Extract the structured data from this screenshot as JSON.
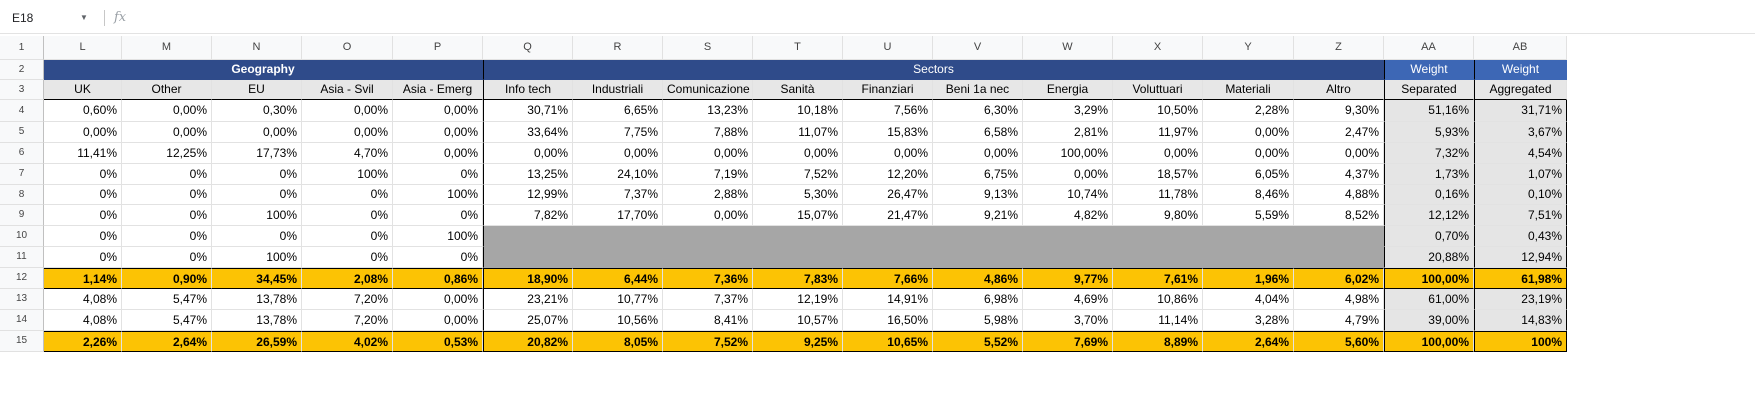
{
  "formula_bar": {
    "name_box": "E18",
    "fx_label": "fx"
  },
  "columns": [
    "L",
    "M",
    "N",
    "O",
    "P",
    "Q",
    "R",
    "S",
    "T",
    "U",
    "V",
    "W",
    "X",
    "Y",
    "Z",
    "AA",
    "AB"
  ],
  "rows": [
    "1",
    "2",
    "3",
    "4",
    "5",
    "6",
    "7",
    "8",
    "9",
    "10",
    "11",
    "12",
    "13",
    "14",
    "15"
  ],
  "groups": {
    "geography": "Geography",
    "sectors": "Sectors",
    "weight_sep": "Weight",
    "weight_agg": "Weight"
  },
  "headers": [
    "UK",
    "Other",
    "EU",
    "Asia - Svil",
    "Asia - Emerg",
    "Info tech",
    "Industriali",
    "Comunicazione",
    "Sanità",
    "Finanziari",
    "Beni 1a nec",
    "Energia",
    "Voluttuari",
    "Materiali",
    "Altro",
    "Separated",
    "Aggregated"
  ],
  "data_rows": [
    [
      "0,60%",
      "0,00%",
      "0,30%",
      "0,00%",
      "0,00%",
      "30,71%",
      "6,65%",
      "13,23%",
      "10,18%",
      "7,56%",
      "6,30%",
      "3,29%",
      "10,50%",
      "2,28%",
      "9,30%",
      "51,16%",
      "31,71%"
    ],
    [
      "0,00%",
      "0,00%",
      "0,00%",
      "0,00%",
      "0,00%",
      "33,64%",
      "7,75%",
      "7,88%",
      "11,07%",
      "15,83%",
      "6,58%",
      "2,81%",
      "11,97%",
      "0,00%",
      "2,47%",
      "5,93%",
      "3,67%"
    ],
    [
      "11,41%",
      "12,25%",
      "17,73%",
      "4,70%",
      "0,00%",
      "0,00%",
      "0,00%",
      "0,00%",
      "0,00%",
      "0,00%",
      "0,00%",
      "100,00%",
      "0,00%",
      "0,00%",
      "0,00%",
      "7,32%",
      "4,54%"
    ],
    [
      "0%",
      "0%",
      "0%",
      "100%",
      "0%",
      "13,25%",
      "24,10%",
      "7,19%",
      "7,52%",
      "12,20%",
      "6,75%",
      "0,00%",
      "18,57%",
      "6,05%",
      "4,37%",
      "1,73%",
      "1,07%"
    ],
    [
      "0%",
      "0%",
      "0%",
      "0%",
      "100%",
      "12,99%",
      "7,37%",
      "2,88%",
      "5,30%",
      "26,47%",
      "9,13%",
      "10,74%",
      "11,78%",
      "8,46%",
      "4,88%",
      "0,16%",
      "0,10%"
    ],
    [
      "0%",
      "0%",
      "100%",
      "0%",
      "0%",
      "7,82%",
      "17,70%",
      "0,00%",
      "15,07%",
      "21,47%",
      "9,21%",
      "4,82%",
      "9,80%",
      "5,59%",
      "8,52%",
      "12,12%",
      "7,51%"
    ],
    [
      "0%",
      "0%",
      "0%",
      "0%",
      "100%",
      "",
      "",
      "",
      "",
      "",
      "",
      "",
      "",
      "",
      "",
      "0,70%",
      "0,43%"
    ],
    [
      "0%",
      "0%",
      "100%",
      "0%",
      "0%",
      "",
      "",
      "",
      "",
      "",
      "",
      "",
      "",
      "",
      "",
      "20,88%",
      "12,94%"
    ],
    [
      "1,14%",
      "0,90%",
      "34,45%",
      "2,08%",
      "0,86%",
      "18,90%",
      "6,44%",
      "7,36%",
      "7,83%",
      "7,66%",
      "4,86%",
      "9,77%",
      "7,61%",
      "1,96%",
      "6,02%",
      "100,00%",
      "61,98%"
    ],
    [
      "4,08%",
      "5,47%",
      "13,78%",
      "7,20%",
      "0,00%",
      "23,21%",
      "10,77%",
      "7,37%",
      "12,19%",
      "14,91%",
      "6,98%",
      "4,69%",
      "10,86%",
      "4,04%",
      "4,98%",
      "61,00%",
      "23,19%"
    ],
    [
      "4,08%",
      "5,47%",
      "13,78%",
      "7,20%",
      "0,00%",
      "25,07%",
      "10,56%",
      "8,41%",
      "10,57%",
      "16,50%",
      "5,98%",
      "3,70%",
      "11,14%",
      "3,28%",
      "4,79%",
      "39,00%",
      "14,83%"
    ],
    [
      "2,26%",
      "2,64%",
      "26,59%",
      "4,02%",
      "0,53%",
      "20,82%",
      "8,05%",
      "7,52%",
      "9,25%",
      "10,65%",
      "5,52%",
      "7,69%",
      "8,89%",
      "2,64%",
      "5,60%",
      "100,00%",
      "100%"
    ]
  ],
  "colors": {
    "header_blue": "#2f4b8a",
    "weight_blue": "#3d67b5",
    "total_gold": "#fcc304",
    "header_grey": "#e7e7e7",
    "blank_grey": "#a6a6a6"
  }
}
